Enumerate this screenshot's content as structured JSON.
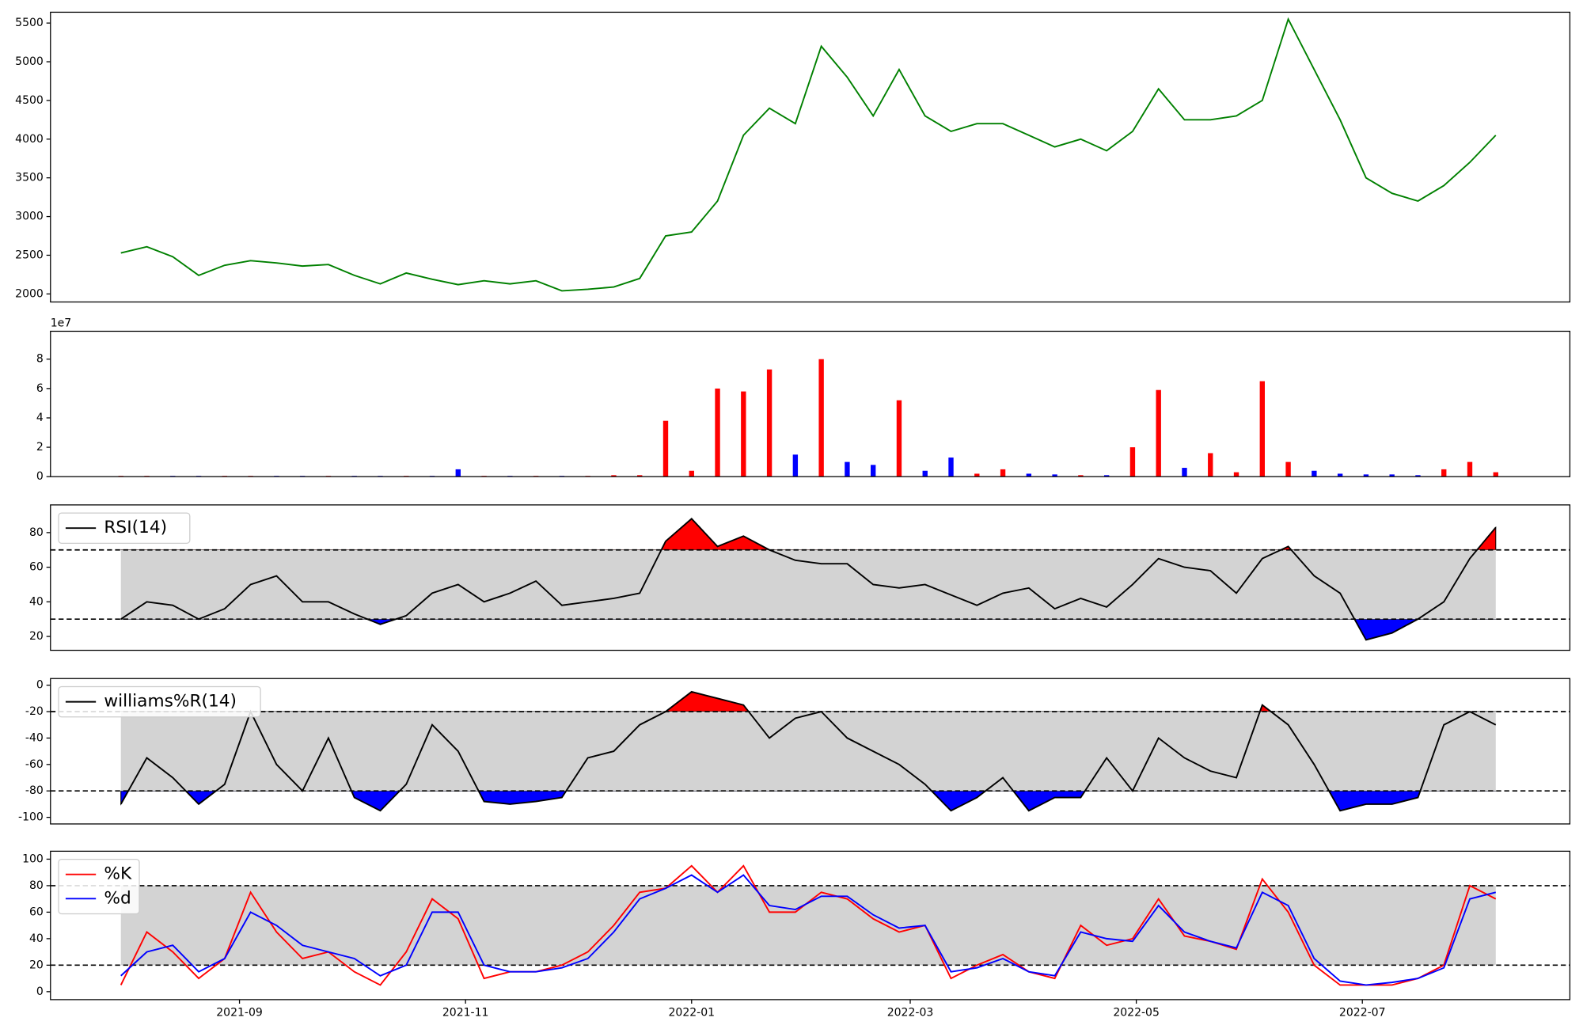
{
  "chart_data": [
    {
      "type": "line",
      "color": "green",
      "x": [
        18839,
        18846,
        18853,
        18860,
        18867,
        18874,
        18881,
        18888,
        18895,
        18902,
        18909,
        18916,
        18923,
        18930,
        18937,
        18944,
        18951,
        18958,
        18965,
        18972,
        18979,
        18986,
        18993,
        19000,
        19007,
        19014,
        19021,
        19028,
        19035,
        19042,
        19049,
        19056,
        19063,
        19070,
        19077,
        19084,
        19091,
        19098,
        19105,
        19112,
        19119,
        19126,
        19133,
        19140,
        19147,
        19154,
        19161,
        19168,
        19175,
        19182,
        19189,
        19196,
        19203,
        19210
      ],
      "values": [
        2530,
        2610,
        2480,
        2240,
        2370,
        2430,
        2400,
        2360,
        2380,
        2240,
        2130,
        2270,
        2190,
        2120,
        2170,
        2130,
        2170,
        2040,
        2060,
        2090,
        2200,
        2750,
        2800,
        3200,
        4050,
        4400,
        4200,
        5200,
        4800,
        4300,
        4900,
        4300,
        4100,
        4200,
        4200,
        4050,
        3900,
        4000,
        3850,
        4100,
        4650,
        4250,
        4250,
        4300,
        4500,
        5550,
        4900,
        4250,
        3500,
        3300,
        3200,
        3400,
        3700,
        4050
      ],
      "xlim": [
        18820,
        19230
      ],
      "ylim": [
        1896,
        5640
      ],
      "yticks": [
        2000,
        2500,
        3000,
        3500,
        4000,
        4500,
        5000,
        5500
      ]
    },
    {
      "type": "bar",
      "up_color": "red",
      "down_color": "blue",
      "offset_text": "1e7",
      "x": [
        18839,
        18846,
        18853,
        18860,
        18867,
        18874,
        18881,
        18888,
        18895,
        18902,
        18909,
        18916,
        18923,
        18930,
        18937,
        18944,
        18951,
        18958,
        18965,
        18972,
        18979,
        18986,
        18993,
        19000,
        19007,
        19014,
        19021,
        19028,
        19035,
        19042,
        19049,
        19056,
        19063,
        19070,
        19077,
        19084,
        19091,
        19098,
        19105,
        19112,
        19119,
        19126,
        19133,
        19140,
        19147,
        19154,
        19161,
        19168,
        19175,
        19182,
        19189,
        19196,
        19203,
        19210
      ],
      "values": [
        0.05,
        0.05,
        0.05,
        0.05,
        0.05,
        0.05,
        0.05,
        0.05,
        0.05,
        0.05,
        0.05,
        0.05,
        0.05,
        0.5,
        0.05,
        0.05,
        0.05,
        0.05,
        0.05,
        0.1,
        0.1,
        3.8,
        0.4,
        6.0,
        5.8,
        7.3,
        1.5,
        8.0,
        1.0,
        0.8,
        5.2,
        0.4,
        1.3,
        0.2,
        0.5,
        0.2,
        0.15,
        0.1,
        0.1,
        2.0,
        5.9,
        0.6,
        1.6,
        0.3,
        6.5,
        1.0,
        0.4,
        0.2,
        0.15,
        0.15,
        0.1,
        0.5,
        1.0,
        0.3
      ],
      "xlim": [
        18820,
        19230
      ],
      "ylim": [
        0,
        9.9
      ],
      "yticks": [
        0,
        2,
        4,
        6,
        8
      ]
    },
    {
      "type": "line",
      "legend": "upper left",
      "band_color": "lightgray",
      "extreme_colors": [
        "blue",
        "red"
      ],
      "thresholds": [
        30,
        70
      ],
      "x": [
        18839,
        18846,
        18853,
        18860,
        18867,
        18874,
        18881,
        18888,
        18895,
        18902,
        18909,
        18916,
        18923,
        18930,
        18937,
        18944,
        18951,
        18958,
        18965,
        18972,
        18979,
        18986,
        18993,
        19000,
        19007,
        19014,
        19021,
        19028,
        19035,
        19042,
        19049,
        19056,
        19063,
        19070,
        19077,
        19084,
        19091,
        19098,
        19105,
        19112,
        19119,
        19126,
        19133,
        19140,
        19147,
        19154,
        19161,
        19168,
        19175,
        19182,
        19189,
        19196,
        19203,
        19210
      ],
      "series": [
        {
          "name": "RSI(14)",
          "color": "black",
          "values": [
            30,
            40,
            38,
            30,
            36,
            50,
            55,
            40,
            40,
            33,
            27,
            32,
            45,
            50,
            40,
            45,
            52,
            38,
            40,
            42,
            45,
            75,
            88,
            72,
            78,
            70,
            64,
            62,
            62,
            50,
            48,
            50,
            44,
            38,
            45,
            48,
            36,
            42,
            37,
            50,
            65,
            60,
            58,
            45,
            65,
            72,
            55,
            45,
            18,
            22,
            30,
            40,
            65,
            83
          ]
        }
      ],
      "xlim": [
        18820,
        19230
      ],
      "ylim": [
        12,
        96
      ],
      "yticks": [
        20,
        40,
        60,
        80
      ]
    },
    {
      "type": "line",
      "legend": "upper left",
      "band_color": "lightgray",
      "extreme_colors": [
        "blue",
        "red"
      ],
      "thresholds": [
        -80,
        -20
      ],
      "x": [
        18839,
        18846,
        18853,
        18860,
        18867,
        18874,
        18881,
        18888,
        18895,
        18902,
        18909,
        18916,
        18923,
        18930,
        18937,
        18944,
        18951,
        18958,
        18965,
        18972,
        18979,
        18986,
        18993,
        19000,
        19007,
        19014,
        19021,
        19028,
        19035,
        19042,
        19049,
        19056,
        19063,
        19070,
        19077,
        19084,
        19091,
        19098,
        19105,
        19112,
        19119,
        19126,
        19133,
        19140,
        19147,
        19154,
        19161,
        19168,
        19175,
        19182,
        19189,
        19196,
        19203,
        19210
      ],
      "series": [
        {
          "name": "williams%R(14)",
          "color": "black",
          "values": [
            -90,
            -55,
            -70,
            -90,
            -75,
            -20,
            -60,
            -80,
            -40,
            -85,
            -95,
            -75,
            -30,
            -50,
            -88,
            -90,
            -88,
            -85,
            -55,
            -50,
            -30,
            -20,
            -5,
            -10,
            -15,
            -40,
            -25,
            -20,
            -40,
            -50,
            -60,
            -75,
            -95,
            -85,
            -70,
            -95,
            -85,
            -85,
            -55,
            -80,
            -40,
            -55,
            -65,
            -70,
            -15,
            -30,
            -60,
            -95,
            -90,
            -90,
            -85,
            -30,
            -20,
            -30
          ]
        }
      ],
      "xlim": [
        18820,
        19230
      ],
      "ylim": [
        -105,
        5
      ],
      "yticks": [
        -100,
        -80,
        -60,
        -40,
        -20,
        0
      ]
    },
    {
      "type": "line",
      "legend": "upper left",
      "band_color": "lightgray",
      "thresholds": [
        20,
        80
      ],
      "x": [
        18839,
        18846,
        18853,
        18860,
        18867,
        18874,
        18881,
        18888,
        18895,
        18902,
        18909,
        18916,
        18923,
        18930,
        18937,
        18944,
        18951,
        18958,
        18965,
        18972,
        18979,
        18986,
        18993,
        19000,
        19007,
        19014,
        19021,
        19028,
        19035,
        19042,
        19049,
        19056,
        19063,
        19070,
        19077,
        19084,
        19091,
        19098,
        19105,
        19112,
        19119,
        19126,
        19133,
        19140,
        19147,
        19154,
        19161,
        19168,
        19175,
        19182,
        19189,
        19196,
        19203,
        19210
      ],
      "series": [
        {
          "name": "%K",
          "color": "red",
          "values": [
            5,
            45,
            30,
            10,
            25,
            75,
            45,
            25,
            30,
            15,
            5,
            30,
            70,
            55,
            10,
            15,
            15,
            20,
            30,
            50,
            75,
            78,
            95,
            75,
            95,
            60,
            60,
            75,
            70,
            55,
            45,
            50,
            10,
            20,
            28,
            15,
            10,
            50,
            35,
            40,
            70,
            42,
            38,
            32,
            85,
            60,
            20,
            5,
            5,
            5,
            10,
            20,
            80,
            70
          ]
        },
        {
          "name": "%d",
          "color": "blue",
          "values": [
            12,
            30,
            35,
            15,
            25,
            60,
            50,
            35,
            30,
            25,
            12,
            20,
            60,
            60,
            20,
            15,
            15,
            18,
            25,
            45,
            70,
            78,
            88,
            75,
            88,
            65,
            62,
            72,
            72,
            58,
            48,
            50,
            15,
            18,
            25,
            15,
            12,
            45,
            40,
            38,
            65,
            45,
            38,
            33,
            75,
            65,
            25,
            8,
            5,
            7,
            10,
            18,
            70,
            75
          ]
        }
      ],
      "xlim": [
        18820,
        19230
      ],
      "ylim": [
        -6,
        106
      ],
      "yticks": [
        0,
        20,
        40,
        60,
        80,
        100
      ],
      "xticks": [
        {
          "value": 18871,
          "label": "2021-09"
        },
        {
          "value": 18932,
          "label": "2021-11"
        },
        {
          "value": 18993,
          "label": "2022-01"
        },
        {
          "value": 19052,
          "label": "2022-03"
        },
        {
          "value": 19113,
          "label": "2022-05"
        },
        {
          "value": 19174,
          "label": "2022-07"
        }
      ]
    }
  ]
}
